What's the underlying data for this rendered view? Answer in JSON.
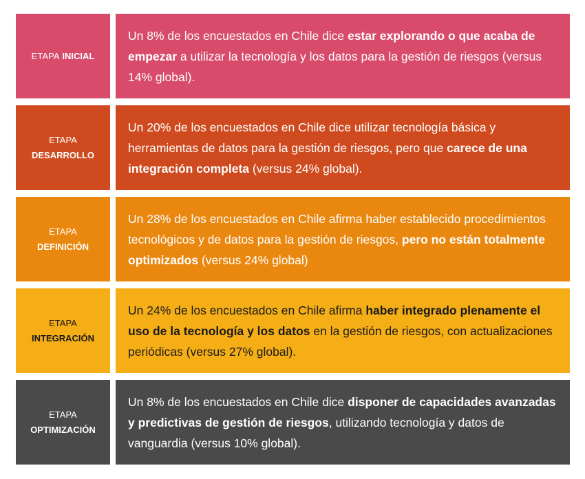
{
  "rows": [
    {
      "label": {
        "prefix": "ETAPA",
        "name": "INICIAL"
      },
      "color": "#d84b6b",
      "text_color": "#ffffff",
      "description": [
        {
          "text": "Un 8% de los encuestados en Chile dice ",
          "bold": false
        },
        {
          "text": "estar explorando o que acaba de empezar",
          "bold": true
        },
        {
          "text": " a utilizar la tecnología y los datos para la gestión de riesgos (versus 14% global).",
          "bold": false
        }
      ]
    },
    {
      "label": {
        "prefix": "ETAPA",
        "name": "DESARROLLO"
      },
      "color": "#cf4b1f",
      "text_color": "#ffffff",
      "description": [
        {
          "text": "Un 20% de los encuestados en Chile dice utilizar tecnología básica y herramientas de datos para la gestión de riesgos, pero que ",
          "bold": false
        },
        {
          "text": "carece de una integración completa",
          "bold": true
        },
        {
          "text": " (versus 24% global).",
          "bold": false
        }
      ]
    },
    {
      "label": {
        "prefix": "ETAPA",
        "name": "DEFINICIÓN"
      },
      "color": "#e9870f",
      "text_color": "#ffffff",
      "description": [
        {
          "text": "Un 28% de los encuestados en Chile afirma haber establecido procedimientos tecnológicos y de datos para la gestión de riesgos, ",
          "bold": false
        },
        {
          "text": "pero no están totalmente optimizados",
          "bold": true
        },
        {
          "text": " (versus 24% global)",
          "bold": false
        }
      ]
    },
    {
      "label": {
        "prefix": "ETAPA",
        "name": "INTEGRACIÓN"
      },
      "color": "#f6ae16",
      "text_color": "#1a1a1a",
      "description": [
        {
          "text": "Un 24% de los encuestados en Chile afirma ",
          "bold": false
        },
        {
          "text": "haber integrado plenamente el uso de la tecnología y los datos",
          "bold": true
        },
        {
          "text": " en la gestión de riesgos, con actualizaciones periódicas (versus 27% global).",
          "bold": false
        }
      ]
    },
    {
      "label": {
        "prefix": "ETAPA",
        "name": "OPTIMIZACIÓN"
      },
      "color": "#4a4a4a",
      "text_color": "#ffffff",
      "description": [
        {
          "text": "Un 8% de los encuestados en Chile dice ",
          "bold": false
        },
        {
          "text": "disponer de capacidades avanzadas y predictivas de gestión de riesgos",
          "bold": true
        },
        {
          "text": ", utilizando tecnología y datos de vanguardia (versus 10% global).",
          "bold": false
        }
      ]
    }
  ]
}
